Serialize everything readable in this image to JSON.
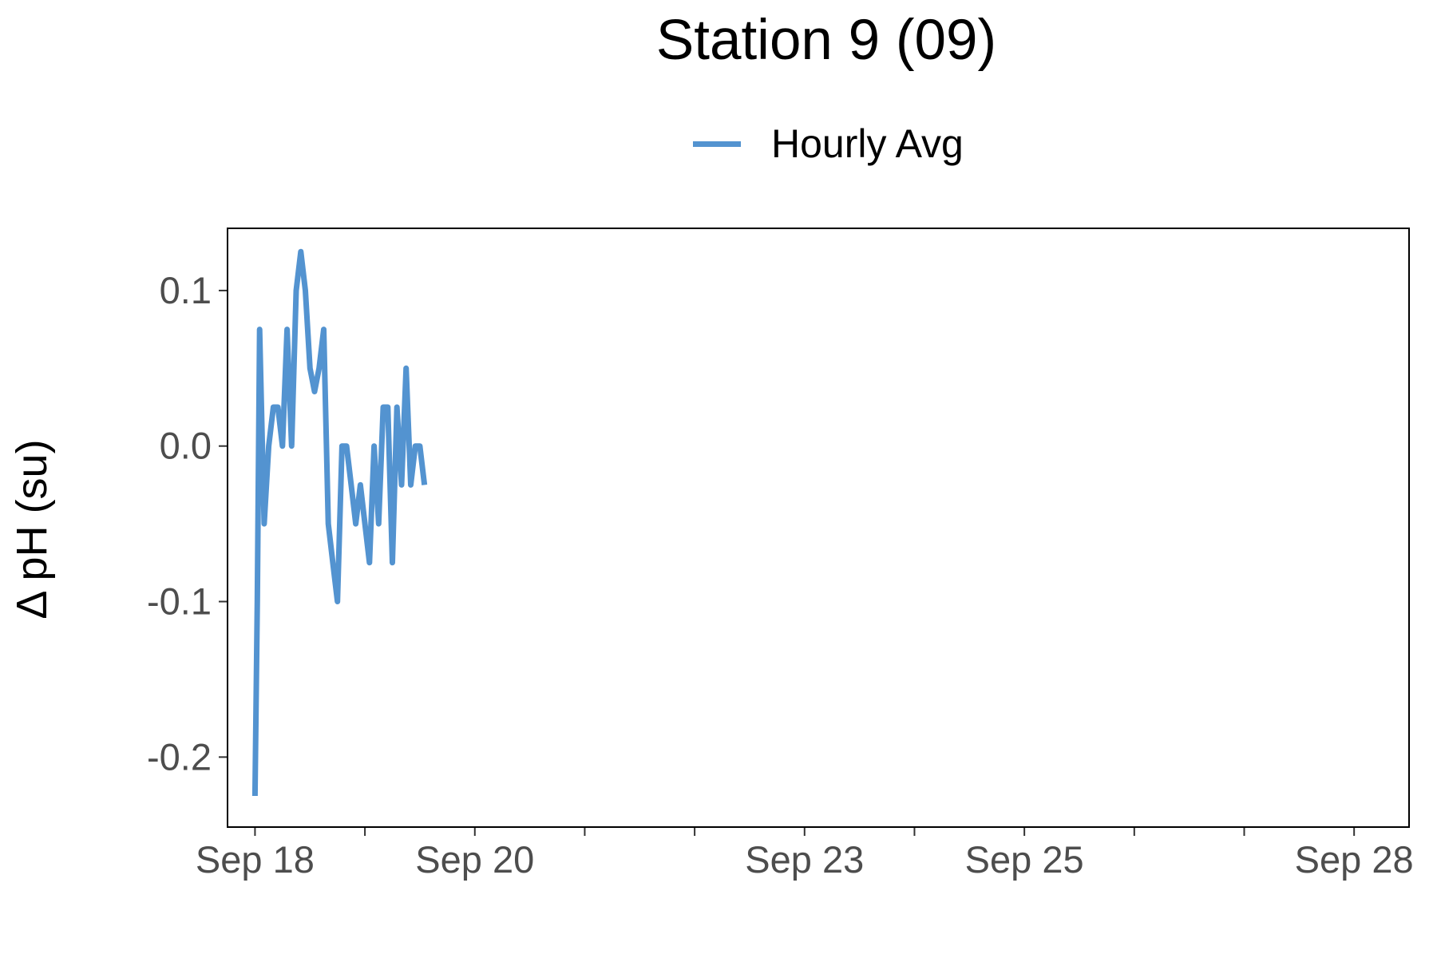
{
  "chart_data": {
    "type": "line",
    "title": "Station 9 (09)",
    "xlabel": "",
    "ylabel": "Δ pH (su)",
    "ylim": [
      -0.245,
      0.14
    ],
    "xlim": [
      "Sep 17 18:00",
      "Sep 28 12:00"
    ],
    "grid": false,
    "legend_position": "top",
    "x_ticks": [
      {
        "date": "Sep 18",
        "label": "Sep 18"
      },
      {
        "date": "Sep 19",
        "label": ""
      },
      {
        "date": "Sep 20",
        "label": "Sep 20"
      },
      {
        "date": "Sep 21",
        "label": ""
      },
      {
        "date": "Sep 22",
        "label": ""
      },
      {
        "date": "Sep 23",
        "label": "Sep 23"
      },
      {
        "date": "Sep 24",
        "label": ""
      },
      {
        "date": "Sep 25",
        "label": "Sep 25"
      },
      {
        "date": "Sep 26",
        "label": ""
      },
      {
        "date": "Sep 27",
        "label": ""
      },
      {
        "date": "Sep 28",
        "label": "Sep 28"
      }
    ],
    "y_ticks": [
      {
        "value": 0.1,
        "label": "0.1"
      },
      {
        "value": 0.0,
        "label": "0.0"
      },
      {
        "value": -0.1,
        "label": "-0.1"
      },
      {
        "value": -0.2,
        "label": "-0.2"
      }
    ],
    "series": [
      {
        "name": "Hourly Avg",
        "color": "#5393d0",
        "points": [
          [
            "Sep 18 00:00",
            -0.225
          ],
          [
            "Sep 18 00:30",
            -0.1
          ],
          [
            "Sep 18 01:00",
            0.075
          ],
          [
            "Sep 18 02:00",
            -0.05
          ],
          [
            "Sep 18 03:00",
            0.0
          ],
          [
            "Sep 18 04:00",
            0.025
          ],
          [
            "Sep 18 05:00",
            0.025
          ],
          [
            "Sep 18 06:00",
            0.0
          ],
          [
            "Sep 18 07:00",
            0.075
          ],
          [
            "Sep 18 08:00",
            0.0
          ],
          [
            "Sep 18 09:00",
            0.1
          ],
          [
            "Sep 18 10:00",
            0.125
          ],
          [
            "Sep 18 11:00",
            0.1
          ],
          [
            "Sep 18 12:00",
            0.05
          ],
          [
            "Sep 18 13:00",
            0.035
          ],
          [
            "Sep 18 14:00",
            0.05
          ],
          [
            "Sep 18 15:00",
            0.075
          ],
          [
            "Sep 18 16:00",
            -0.05
          ],
          [
            "Sep 18 17:00",
            -0.075
          ],
          [
            "Sep 18 18:00",
            -0.1
          ],
          [
            "Sep 18 19:00",
            0.0
          ],
          [
            "Sep 18 20:00",
            0.0
          ],
          [
            "Sep 18 21:00",
            -0.025
          ],
          [
            "Sep 18 22:00",
            -0.05
          ],
          [
            "Sep 18 23:00",
            -0.025
          ],
          [
            "Sep 19 00:00",
            -0.05
          ],
          [
            "Sep 19 01:00",
            -0.075
          ],
          [
            "Sep 19 02:00",
            0.0
          ],
          [
            "Sep 19 03:00",
            -0.05
          ],
          [
            "Sep 19 04:00",
            0.025
          ],
          [
            "Sep 19 05:00",
            0.025
          ],
          [
            "Sep 19 06:00",
            -0.075
          ],
          [
            "Sep 19 07:00",
            0.025
          ],
          [
            "Sep 19 08:00",
            -0.025
          ],
          [
            "Sep 19 09:00",
            0.05
          ],
          [
            "Sep 19 10:00",
            -0.025
          ],
          [
            "Sep 19 11:00",
            0.0
          ],
          [
            "Sep 19 12:00",
            0.0
          ],
          [
            "Sep 19 13:00",
            -0.025
          ]
        ]
      }
    ]
  }
}
